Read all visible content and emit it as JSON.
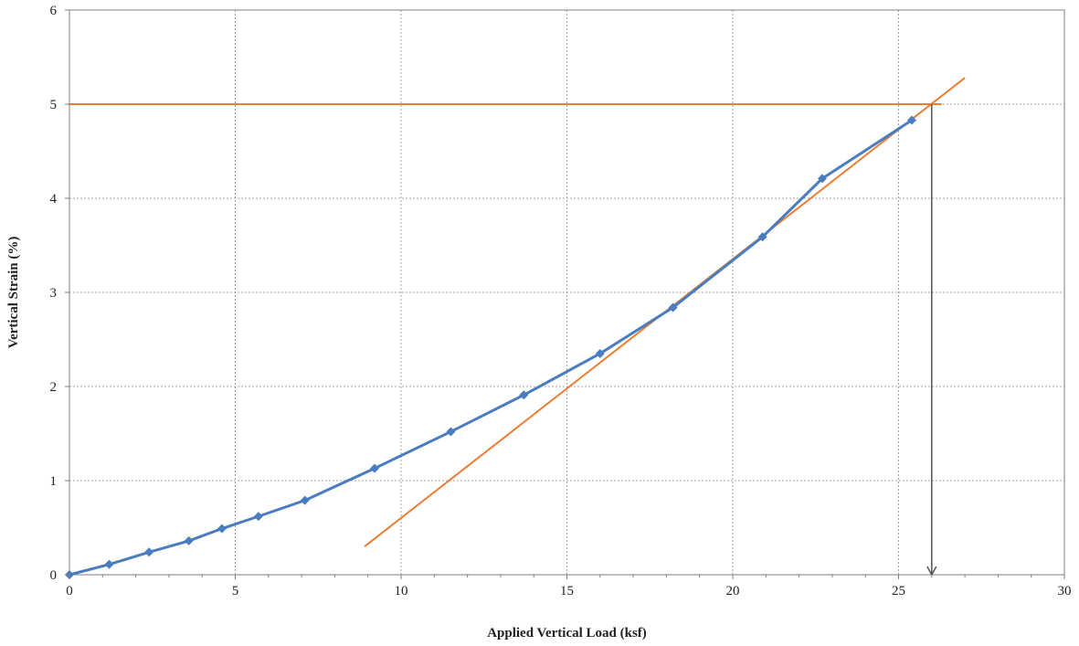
{
  "chart_data": {
    "type": "line",
    "title": "",
    "xlabel": "Applied Vertical Load (ksf)",
    "ylabel": "Vertical Strain (%)",
    "xlim": [
      0,
      30
    ],
    "ylim": [
      0,
      6
    ],
    "xticks": [
      "0",
      "5",
      "10",
      "15",
      "20",
      "25",
      "30"
    ],
    "yticks": [
      "0",
      "1",
      "2",
      "3",
      "4",
      "5",
      "6"
    ],
    "grid": true,
    "legend": "none",
    "series": [
      {
        "color": "#4a7cc0",
        "marker": "diamond",
        "x": [
          0,
          1.2,
          2.4,
          3.6,
          4.6,
          5.7,
          7.1,
          9.2,
          11.5,
          13.7,
          16.0,
          18.2,
          20.9,
          22.7,
          25.4
        ],
        "y": [
          0,
          0.11,
          0.24,
          0.36,
          0.49,
          0.62,
          0.79,
          1.13,
          1.52,
          1.91,
          2.35,
          2.84,
          3.59,
          4.21,
          4.83
        ]
      }
    ],
    "reference_lines": [
      {
        "color": "#ed7d31",
        "x": [
          0,
          26.3
        ],
        "y": [
          5,
          5
        ]
      },
      {
        "color": "#ed7d31",
        "x": [
          8.9,
          27.0
        ],
        "y": [
          0.3,
          5.28
        ]
      }
    ],
    "arrow": {
      "color": "#555555",
      "x": 26,
      "y_from": 5,
      "y_to": 0
    }
  }
}
